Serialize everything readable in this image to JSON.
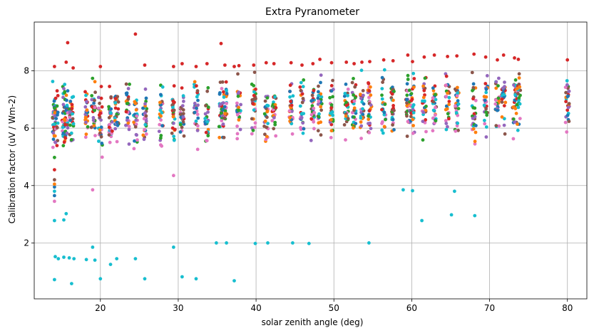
{
  "chart_data": {
    "type": "scatter",
    "title": "Extra Pyranometer",
    "xlabel": "solar zenith angle (deg)",
    "ylabel": "Calibration factor (uV / Wm-2)",
    "xlim": [
      11.5,
      82.5
    ],
    "ylim": [
      0.05,
      9.7
    ],
    "xticks": [
      20,
      30,
      40,
      50,
      60,
      70,
      80
    ],
    "yticks": [
      2,
      4,
      6,
      8
    ],
    "grid": true,
    "colors": [
      "#1f77b4",
      "#ff7f0e",
      "#2ca02c",
      "#d62728",
      "#9467bd",
      "#8c564b",
      "#e377c2",
      "#7f7f7f",
      "#bcbd22",
      "#17becf"
    ],
    "x_columns": [
      14.1,
      14.3,
      15.3,
      15.6,
      16.3,
      18.2,
      19.1,
      20.0,
      21.3,
      22.1,
      23.5,
      24.5,
      25.7,
      27.8,
      29.4,
      30.5,
      32.3,
      33.7,
      35.5,
      36.0,
      37.8,
      39.7,
      41.3,
      42.3,
      44.5,
      45.9,
      47.3,
      48.2,
      49.7,
      51.6,
      52.6,
      53.6,
      54.6,
      56.4,
      57.6,
      59.5,
      60.1,
      61.6,
      62.9,
      64.6,
      65.8,
      68.0,
      69.5,
      71.0,
      71.8,
      73.2,
      73.7,
      80.0
    ],
    "upper_band": [
      {
        "x": 14.1,
        "y": 8.15
      },
      {
        "x": 15.6,
        "y": 8.3
      },
      {
        "x": 15.8,
        "y": 8.98
      },
      {
        "x": 16.5,
        "y": 8.1
      },
      {
        "x": 20.0,
        "y": 8.15
      },
      {
        "x": 24.5,
        "y": 9.28
      },
      {
        "x": 25.7,
        "y": 8.2
      },
      {
        "x": 29.4,
        "y": 8.15
      },
      {
        "x": 30.5,
        "y": 8.25
      },
      {
        "x": 32.3,
        "y": 8.15
      },
      {
        "x": 33.7,
        "y": 8.25
      },
      {
        "x": 35.5,
        "y": 8.95
      },
      {
        "x": 36.0,
        "y": 8.2
      },
      {
        "x": 37.2,
        "y": 8.15
      },
      {
        "x": 37.8,
        "y": 8.18
      },
      {
        "x": 39.7,
        "y": 8.2
      },
      {
        "x": 41.3,
        "y": 8.28
      },
      {
        "x": 42.3,
        "y": 8.25
      },
      {
        "x": 44.5,
        "y": 8.28
      },
      {
        "x": 45.9,
        "y": 8.2
      },
      {
        "x": 47.3,
        "y": 8.25
      },
      {
        "x": 48.2,
        "y": 8.4
      },
      {
        "x": 49.7,
        "y": 8.28
      },
      {
        "x": 51.6,
        "y": 8.3
      },
      {
        "x": 52.6,
        "y": 8.25
      },
      {
        "x": 53.6,
        "y": 8.3
      },
      {
        "x": 54.6,
        "y": 8.32
      },
      {
        "x": 56.4,
        "y": 8.38
      },
      {
        "x": 57.6,
        "y": 8.35
      },
      {
        "x": 59.5,
        "y": 8.55
      },
      {
        "x": 60.1,
        "y": 8.32
      },
      {
        "x": 61.6,
        "y": 8.48
      },
      {
        "x": 62.9,
        "y": 8.55
      },
      {
        "x": 64.6,
        "y": 8.5
      },
      {
        "x": 65.8,
        "y": 8.52
      },
      {
        "x": 68.0,
        "y": 8.58
      },
      {
        "x": 69.5,
        "y": 8.48
      },
      {
        "x": 71.0,
        "y": 8.38
      },
      {
        "x": 71.8,
        "y": 8.55
      },
      {
        "x": 73.2,
        "y": 8.45
      },
      {
        "x": 73.7,
        "y": 8.4
      },
      {
        "x": 80.0,
        "y": 8.38
      }
    ],
    "low_outliers": [
      {
        "x": 14.1,
        "y": 0.72,
        "color": "#17becf"
      },
      {
        "x": 14.2,
        "y": 1.52,
        "color": "#17becf"
      },
      {
        "x": 14.6,
        "y": 1.45,
        "color": "#17becf"
      },
      {
        "x": 15.3,
        "y": 1.5,
        "color": "#17becf"
      },
      {
        "x": 16.0,
        "y": 1.48,
        "color": "#17becf"
      },
      {
        "x": 16.6,
        "y": 1.45,
        "color": "#17becf"
      },
      {
        "x": 16.3,
        "y": 0.58,
        "color": "#17becf"
      },
      {
        "x": 18.2,
        "y": 1.42,
        "color": "#17becf"
      },
      {
        "x": 19.0,
        "y": 1.85,
        "color": "#17becf"
      },
      {
        "x": 19.3,
        "y": 1.4,
        "color": "#17becf"
      },
      {
        "x": 20.0,
        "y": 0.75,
        "color": "#17becf"
      },
      {
        "x": 21.3,
        "y": 1.25,
        "color": "#17becf"
      },
      {
        "x": 22.1,
        "y": 1.45,
        "color": "#17becf"
      },
      {
        "x": 24.5,
        "y": 1.45,
        "color": "#17becf"
      },
      {
        "x": 25.7,
        "y": 0.75,
        "color": "#17becf"
      },
      {
        "x": 29.4,
        "y": 1.85,
        "color": "#17becf"
      },
      {
        "x": 30.5,
        "y": 0.82,
        "color": "#17becf"
      },
      {
        "x": 32.3,
        "y": 0.75,
        "color": "#17becf"
      },
      {
        "x": 34.9,
        "y": 2.0,
        "color": "#17becf"
      },
      {
        "x": 36.2,
        "y": 2.0,
        "color": "#17becf"
      },
      {
        "x": 37.2,
        "y": 0.68,
        "color": "#17becf"
      },
      {
        "x": 39.9,
        "y": 1.98,
        "color": "#17becf"
      },
      {
        "x": 41.5,
        "y": 2.0,
        "color": "#17becf"
      },
      {
        "x": 44.7,
        "y": 2.0,
        "color": "#17becf"
      },
      {
        "x": 46.8,
        "y": 1.98,
        "color": "#17becf"
      },
      {
        "x": 54.5,
        "y": 2.0,
        "color": "#17becf"
      },
      {
        "x": 58.9,
        "y": 3.85,
        "color": "#17becf"
      },
      {
        "x": 60.1,
        "y": 3.82,
        "color": "#17becf"
      },
      {
        "x": 61.3,
        "y": 2.78,
        "color": "#17becf"
      },
      {
        "x": 65.1,
        "y": 2.98,
        "color": "#17becf"
      },
      {
        "x": 65.5,
        "y": 3.8,
        "color": "#17becf"
      },
      {
        "x": 68.1,
        "y": 2.95,
        "color": "#17becf"
      },
      {
        "x": 14.1,
        "y": 2.78,
        "color": "#17becf"
      },
      {
        "x": 15.3,
        "y": 2.8,
        "color": "#17becf"
      },
      {
        "x": 15.6,
        "y": 3.02,
        "color": "#17becf"
      },
      {
        "x": 19.0,
        "y": 3.85,
        "color": "#e377c2"
      },
      {
        "x": 29.4,
        "y": 4.35,
        "color": "#e377c2"
      },
      {
        "x": 14.1,
        "y": 3.45,
        "color": "#e377c2"
      },
      {
        "x": 14.1,
        "y": 3.65,
        "color": "#1f77b4"
      },
      {
        "x": 14.1,
        "y": 3.8,
        "color": "#17becf"
      },
      {
        "x": 14.1,
        "y": 3.95,
        "color": "#1f77b4"
      },
      {
        "x": 14.1,
        "y": 4.05,
        "color": "#ff7f0e"
      },
      {
        "x": 14.1,
        "y": 4.2,
        "color": "#8c564b"
      },
      {
        "x": 14.1,
        "y": 4.55,
        "color": "#d62728"
      },
      {
        "x": 14.1,
        "y": 4.98,
        "color": "#2ca02c"
      }
    ]
  }
}
